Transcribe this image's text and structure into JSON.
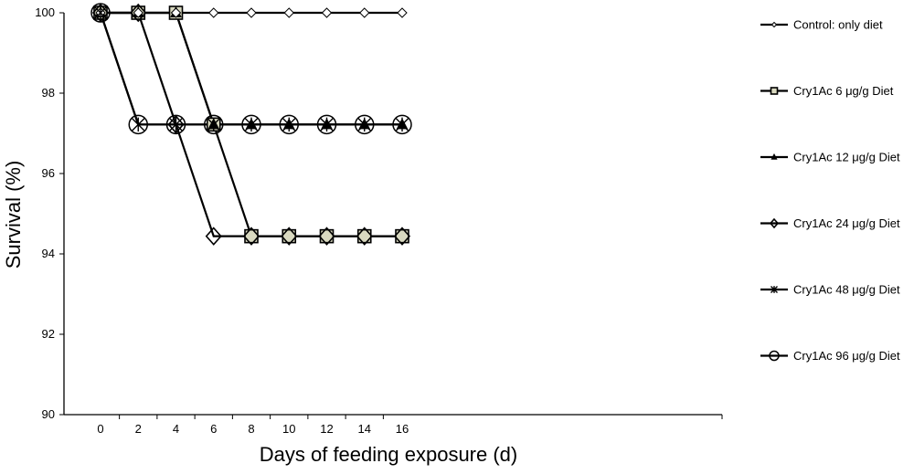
{
  "chart_data": {
    "type": "line",
    "xlabel": "Days of feeding exposure (d)",
    "ylabel": "Survival (%)",
    "x": [
      0,
      2,
      4,
      6,
      8,
      10,
      12,
      14,
      16
    ],
    "x_ticks": [
      "0",
      "2",
      "4",
      "6",
      "8",
      "10",
      "12",
      "14",
      "16"
    ],
    "y_ticks": [
      "90",
      "92",
      "94",
      "96",
      "98",
      "100"
    ],
    "ylim": [
      90,
      100
    ],
    "grid": false,
    "legend_position": "right",
    "series": [
      {
        "name": "Control: only diet",
        "marker": "diamond-small",
        "values": [
          100,
          100,
          100,
          100,
          100,
          100,
          100,
          100,
          100
        ]
      },
      {
        "name": "Cry1Ac 6 μg/g Diet",
        "marker": "square",
        "values": [
          100,
          100,
          100,
          97.22,
          94.44,
          94.44,
          94.44,
          94.44,
          94.44
        ]
      },
      {
        "name": "Cry1Ac 12 μg/g Diet",
        "marker": "triangle",
        "values": [
          100,
          100,
          100,
          97.22,
          97.22,
          97.22,
          97.22,
          97.22,
          97.22
        ]
      },
      {
        "name": "Cry1Ac 24 μg/g Diet",
        "marker": "diamond",
        "values": [
          100,
          100,
          97.22,
          94.44,
          94.44,
          94.44,
          94.44,
          94.44,
          94.44
        ]
      },
      {
        "name": "Cry1Ac 48 μg/g Diet",
        "marker": "star",
        "values": [
          100,
          97.22,
          97.22,
          97.22,
          97.22,
          97.22,
          97.22,
          97.22,
          97.22
        ]
      },
      {
        "name": "Cry1Ac 96 μg/g Diet",
        "marker": "circle",
        "values": [
          100,
          97.22,
          97.22,
          97.22,
          97.22,
          97.22,
          97.22,
          97.22,
          97.22
        ]
      }
    ],
    "colors": {
      "line": "#000000",
      "marker_fill": "#d9d9c0",
      "background": "#ffffff"
    }
  }
}
